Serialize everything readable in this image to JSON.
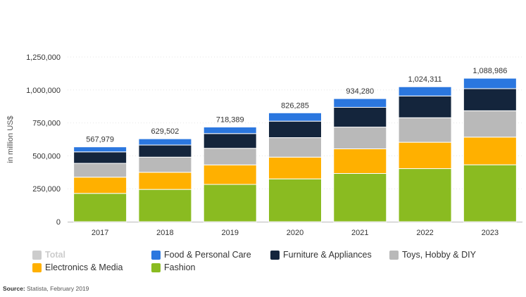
{
  "chart_data": {
    "type": "bar",
    "stacked": true,
    "categories": [
      "2017",
      "2018",
      "2019",
      "2020",
      "2021",
      "2022",
      "2023"
    ],
    "ylabel": "in million US$",
    "ylim": [
      0,
      1250000
    ],
    "yticks": [
      0,
      250000,
      500000,
      750000,
      1000000,
      1250000
    ],
    "ytick_labels": [
      "0",
      "250,000",
      "500,000",
      "750,000",
      "1,000,000",
      "1,250,000"
    ],
    "grid": true,
    "series": [
      {
        "name": "Fashion",
        "color": "#8ABB21",
        "values": [
          215000,
          245000,
          283000,
          325000,
          366000,
          403000,
          432000
        ]
      },
      {
        "name": "Electronics & Media",
        "color": "#FFB000",
        "values": [
          123000,
          130000,
          148000,
          165000,
          187000,
          200000,
          210000
        ]
      },
      {
        "name": "Toys, Hobby & DIY",
        "color": "#B9B9B9",
        "values": [
          105000,
          115000,
          126000,
          148000,
          165000,
          186000,
          200000
        ]
      },
      {
        "name": "Furniture & Appliances",
        "color": "#14253C",
        "values": [
          87000,
          92000,
          112000,
          125000,
          150000,
          165000,
          168000
        ]
      },
      {
        "name": "Food & Personal Care",
        "color": "#2B77DF",
        "values": [
          37979,
          47502,
          49389,
          63285,
          66280,
          70311,
          78986
        ]
      }
    ],
    "totals": [
      567979,
      629502,
      718389,
      826285,
      934280,
      1024311,
      1088986
    ],
    "total_labels": [
      "567,979",
      "629,502",
      "718,389",
      "826,285",
      "934,280",
      "1,024,311",
      "1,088,986"
    ],
    "legend": [
      {
        "name": "Total",
        "color": "#CCCCCC",
        "active": false
      },
      {
        "name": "Food & Personal Care",
        "color": "#2B77DF",
        "active": true
      },
      {
        "name": "Furniture & Appliances",
        "color": "#14253C",
        "active": true
      },
      {
        "name": "Toys, Hobby & DIY",
        "color": "#B9B9B9",
        "active": true
      },
      {
        "name": "Electronics & Media",
        "color": "#FFB000",
        "active": true
      },
      {
        "name": "Fashion",
        "color": "#8ABB21",
        "active": true
      }
    ],
    "legend_placement": "bottom"
  },
  "source": {
    "label": "Source:",
    "text": " Statista, February 2019"
  }
}
